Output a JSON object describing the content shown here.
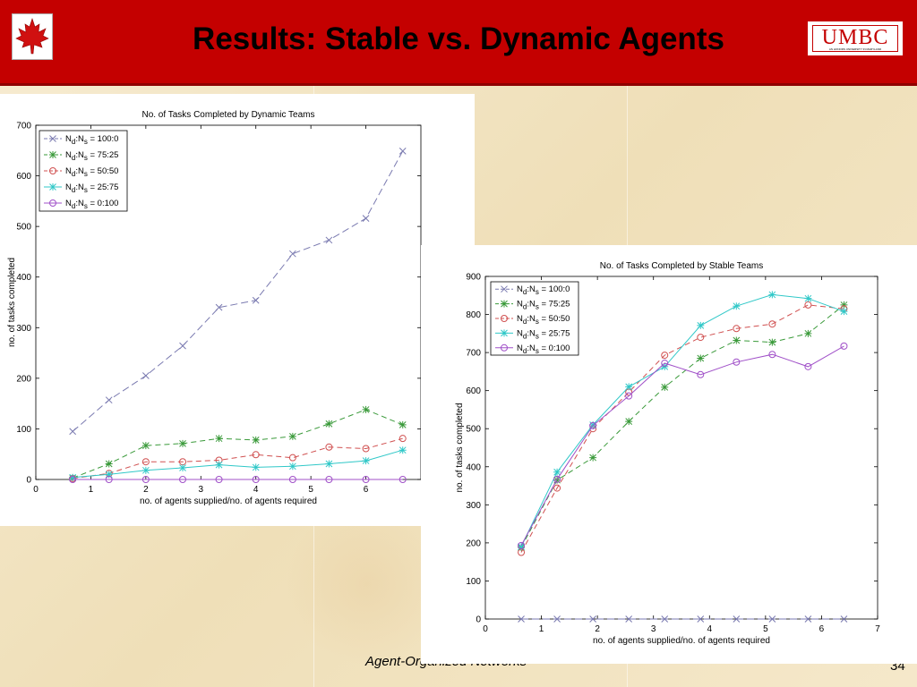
{
  "slide": {
    "title": "Results: Stable vs. Dynamic Agents",
    "footer_text": "Agent-Organized Networks",
    "page_number": "34",
    "logo_text": "UMBC",
    "logo_subtext": "AN HONORS UNIVERSITY IN MARYLAND",
    "header_color": "#c40000"
  },
  "chart_data": [
    {
      "type": "line",
      "title": "No. of Tasks Completed by Dynamic Teams",
      "xlabel": "no. of agents supplied/no. of agents required",
      "ylabel": "no. of tasks completed",
      "xlim": [
        0,
        7
      ],
      "ylim": [
        0,
        700
      ],
      "xticks": [
        0,
        1,
        2,
        3,
        4,
        5,
        6
      ],
      "yticks": [
        0,
        100,
        200,
        300,
        400,
        500,
        600,
        700
      ],
      "legend_position": "top-left",
      "x": [
        0.67,
        1.33,
        2,
        2.67,
        3.33,
        4,
        4.67,
        5.33,
        6,
        6.67
      ],
      "series": [
        {
          "name": "Nd:Ns = 100:0",
          "marker": "x",
          "color": "#7a7ab0",
          "dash": "8,4",
          "values": [
            95,
            157,
            205,
            264,
            340,
            354,
            446,
            473,
            516,
            649
          ]
        },
        {
          "name": "Nd:Ns = 75:25",
          "marker": "*",
          "color": "#3a9a3a",
          "dash": "6,4",
          "values": [
            3,
            31,
            67,
            71,
            81,
            78,
            85,
            110,
            138,
            108
          ]
        },
        {
          "name": "Nd:Ns = 50:50",
          "marker": "o",
          "color": "#d05050",
          "dash": "6,4",
          "values": [
            2,
            12,
            35,
            35,
            38,
            49,
            43,
            64,
            61,
            81
          ]
        },
        {
          "name": "Nd:Ns = 25:75",
          "marker": "*",
          "color": "#30c8c8",
          "dash": "",
          "values": [
            4,
            10,
            18,
            23,
            29,
            24,
            26,
            31,
            37,
            58
          ]
        },
        {
          "name": "Nd:Ns = 0:100",
          "marker": "o",
          "color": "#a050c8",
          "dash": "",
          "values": [
            0,
            0,
            0,
            0,
            0,
            0,
            0,
            0,
            0,
            0
          ]
        }
      ]
    },
    {
      "type": "line",
      "title": "No. of Tasks Completed by Stable Teams",
      "xlabel": "no. of agents supplied/no. of agents required",
      "ylabel": "no. of tasks completed",
      "xlim": [
        0,
        7
      ],
      "ylim": [
        0,
        900
      ],
      "xticks": [
        0,
        1,
        2,
        3,
        4,
        5,
        6,
        7
      ],
      "yticks": [
        0,
        100,
        200,
        300,
        400,
        500,
        600,
        700,
        800,
        900
      ],
      "legend_position": "top-left",
      "x": [
        0.64,
        1.28,
        1.92,
        2.56,
        3.2,
        3.84,
        4.48,
        5.12,
        5.76,
        6.4
      ],
      "series": [
        {
          "name": "Nd:Ns = 100:0",
          "marker": "x",
          "color": "#7a7ab0",
          "dash": "8,4",
          "values": [
            0,
            0,
            0,
            0,
            0,
            0,
            0,
            0,
            0,
            0
          ]
        },
        {
          "name": "Nd:Ns = 75:25",
          "marker": "*",
          "color": "#3a9a3a",
          "dash": "6,4",
          "values": [
            188,
            365,
            424,
            519,
            609,
            685,
            732,
            727,
            750,
            825
          ]
        },
        {
          "name": "Nd:Ns = 50:50",
          "marker": "o",
          "color": "#d05050",
          "dash": "6,4",
          "values": [
            175,
            344,
            500,
            596,
            693,
            740,
            763,
            775,
            825,
            815
          ]
        },
        {
          "name": "Nd:Ns = 25:75",
          "marker": "*",
          "color": "#30c8c8",
          "dash": "",
          "values": [
            190,
            386,
            510,
            610,
            663,
            771,
            822,
            852,
            842,
            808
          ]
        },
        {
          "name": "Nd:Ns = 0:100",
          "marker": "o",
          "color": "#a050c8",
          "dash": "",
          "values": [
            193,
            367,
            508,
            586,
            672,
            642,
            675,
            695,
            663,
            717
          ]
        }
      ]
    }
  ]
}
